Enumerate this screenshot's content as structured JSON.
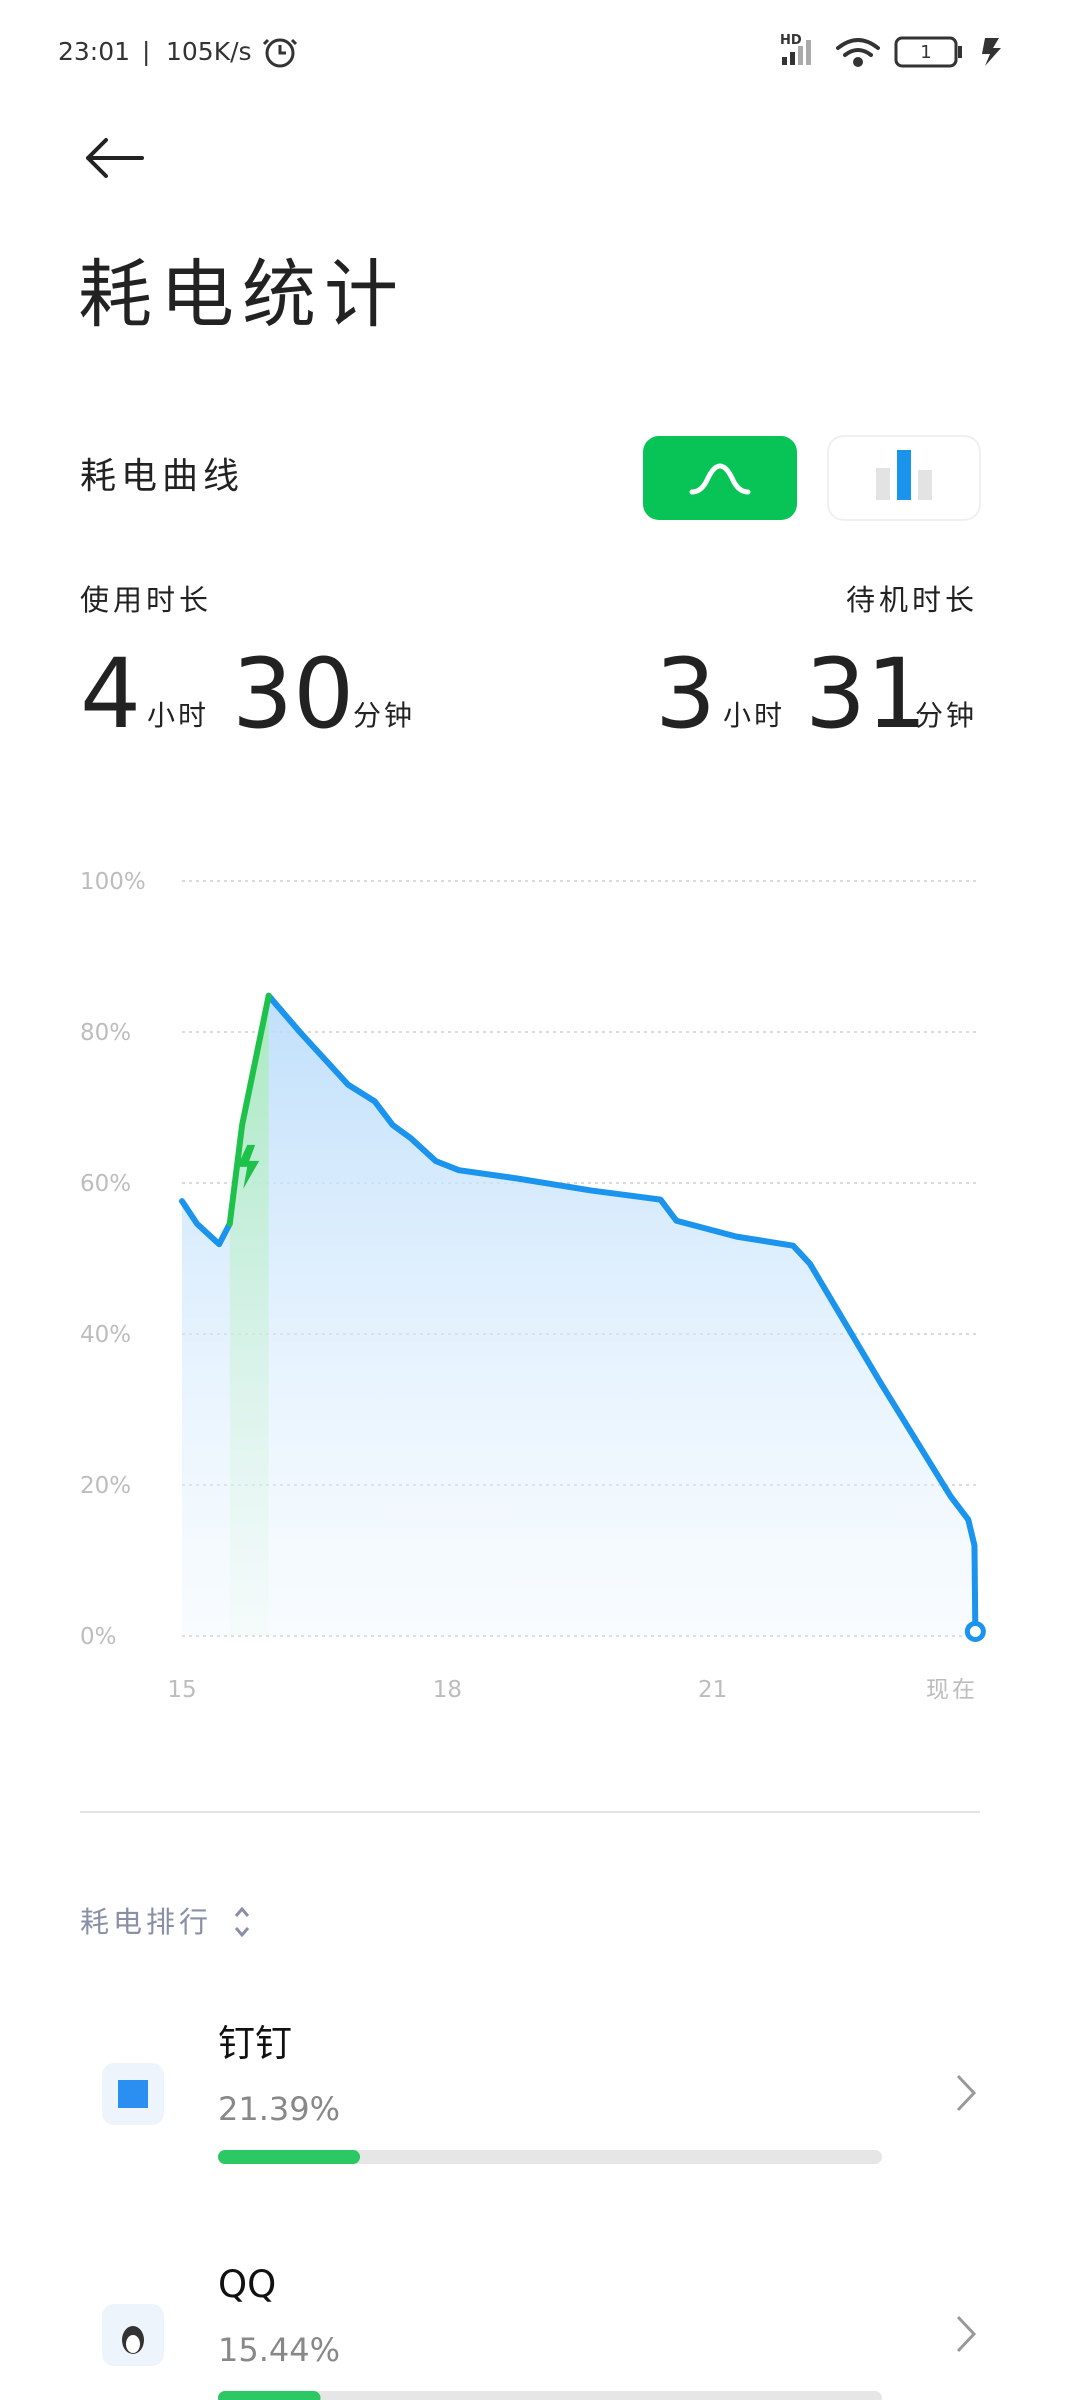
{
  "status_bar": {
    "time": "23:01",
    "speed": "105K/s",
    "battery": "1"
  },
  "title": "耗电统计",
  "curve_label": "耗电曲线",
  "usage": {
    "label": "使用时长",
    "hours": 4,
    "hours_unit": "小时",
    "minutes": 30,
    "minutes_unit": "分钟"
  },
  "standby": {
    "label": "待机时长",
    "hours": 3,
    "hours_unit": "小时",
    "minutes": 31,
    "minutes_unit": "分钟"
  },
  "chart_data": {
    "type": "line",
    "x": [
      15.0,
      15.17,
      15.42,
      15.54,
      15.68,
      15.98,
      16.34,
      16.88,
      17.18,
      17.38,
      17.59,
      17.87,
      18.13,
      18.79,
      19.63,
      20.41,
      20.59,
      21.27,
      21.91,
      22.1,
      22.89,
      23.69,
      23.89,
      23.96,
      23.97
    ],
    "series": [
      {
        "color": "#1a94ec",
        "values": [
          57.6,
          54.6,
          51.9,
          54.6,
          null,
          84.8,
          79.9,
          73.0,
          70.8,
          67.7,
          65.9,
          62.9,
          61.7,
          60.6,
          59.0,
          57.8,
          55.0,
          52.9,
          51.7,
          49.3,
          33.7,
          18.5,
          15.4,
          12.0,
          0.6
        ]
      },
      {
        "color": "#1ec24b",
        "values": [
          null,
          null,
          null,
          54.6,
          67.7,
          84.8,
          null,
          null,
          null,
          null,
          null,
          null,
          null,
          null,
          null,
          null,
          null,
          null,
          null,
          null,
          null,
          null,
          null,
          null,
          null
        ]
      }
    ],
    "xlim": [
      15,
      24
    ],
    "xticks": [
      15,
      18,
      21,
      {
        "value": 24,
        "label": "现在"
      }
    ],
    "ylim": [
      0,
      100
    ],
    "yticks": [
      {
        "value": 0,
        "label": "0%"
      },
      {
        "value": 20,
        "label": "20%"
      },
      {
        "value": 40,
        "label": "40%"
      },
      {
        "value": 60,
        "label": "60%"
      },
      {
        "value": 80,
        "label": "80%"
      },
      {
        "value": 100,
        "label": "100%"
      }
    ],
    "grid": true
  },
  "ranking": {
    "title": "耗电排行",
    "xlim": [
      0,
      100
    ],
    "apps": [
      {
        "name": "钉钉",
        "value": 21.39,
        "value_label": "21.39%"
      },
      {
        "name": "QQ",
        "value": 15.44,
        "value_label": "15.44%"
      }
    ]
  }
}
